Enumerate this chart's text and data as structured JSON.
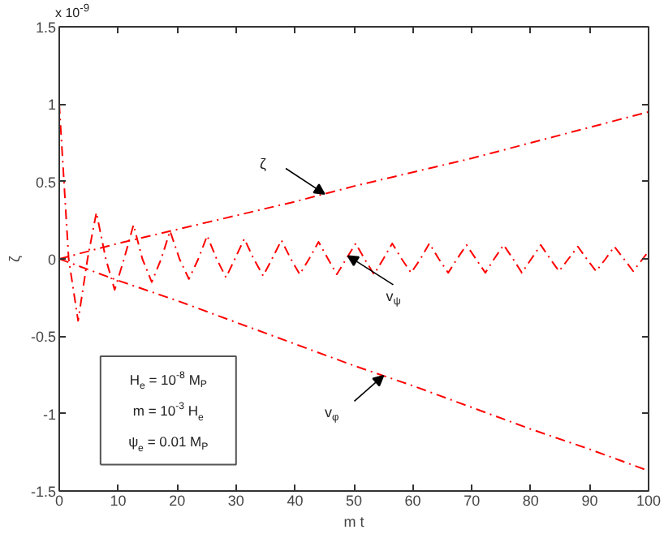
{
  "chart_data": {
    "type": "line",
    "xlabel": "m t",
    "ylabel": "ζ",
    "xlim": [
      0,
      100
    ],
    "ylim": [
      -1.5,
      1.5
    ],
    "xticks": [
      0,
      10,
      20,
      30,
      40,
      50,
      60,
      70,
      80,
      90,
      100
    ],
    "yticks": [
      -1.5,
      -1,
      -0.5,
      0,
      0.5,
      1,
      1.5
    ],
    "grid": false,
    "marker": "none",
    "line_style": "dashdot",
    "annotations": [
      "x 10$^{-9}$",
      "H$_{e}$ = 10$^{-8}$ M$_{P}$",
      "m = 10$^{-3}$ H$_{e}$",
      "ψ$_{e}$ = 0.01 M$_{P}$"
    ],
    "series": [
      {
        "name": "ζ",
        "color": "#ff0000",
        "x": [
          0,
          10,
          20,
          30,
          40,
          50,
          60,
          70,
          80,
          90,
          100
        ],
        "values": [
          0,
          0.1,
          0.19,
          0.28,
          0.37,
          0.47,
          0.56,
          0.65,
          0.75,
          0.85,
          0.95
        ]
      },
      {
        "name": "v$_{ψ}$",
        "color": "#ff0000",
        "x": [
          0,
          1.6,
          3.2,
          4.8,
          6.3,
          7.9,
          9.4,
          11,
          12.6,
          14.1,
          15.7,
          17.3,
          18.8,
          20.4,
          22,
          23.6,
          25.1,
          26.7,
          28.3,
          29.8,
          31.4,
          33,
          34.6,
          36.1,
          37.7,
          39.3,
          40.8,
          42.4,
          44,
          45.6,
          47.1,
          48.7,
          50.3,
          51.8,
          53.4,
          55,
          56.5,
          58.1,
          59.7,
          61.3,
          62.8,
          64.4,
          66,
          67.5,
          69.1,
          70.7,
          72.3,
          73.8,
          75.4,
          77,
          78.5,
          80.1,
          81.7,
          83.3,
          84.8,
          86.4,
          88,
          89.5,
          91.1,
          92.7,
          94.2,
          95.8,
          97.4,
          99,
          100
        ],
        "values": [
          1,
          0,
          -0.4,
          0,
          0.3,
          0,
          -0.2,
          0,
          0.22,
          0,
          -0.15,
          0,
          0.18,
          0,
          -0.13,
          0,
          0.15,
          0,
          -0.12,
          0,
          0.13,
          0,
          -0.11,
          0,
          0.12,
          0,
          -0.1,
          0,
          0.11,
          0,
          -0.1,
          0,
          0.1,
          0,
          -0.1,
          0,
          0.1,
          0,
          -0.09,
          0,
          0.1,
          0,
          -0.09,
          0,
          0.09,
          0,
          -0.09,
          0,
          0.09,
          0,
          -0.09,
          0,
          0.09,
          0,
          -0.08,
          0,
          0.08,
          0,
          -0.08,
          0,
          0.08,
          0,
          -0.08,
          0,
          0.05
        ]
      },
      {
        "name": "v$_{φ}$",
        "color": "#ff0000",
        "x": [
          0,
          10,
          20,
          30,
          40,
          50,
          60,
          70,
          80,
          90,
          100
        ],
        "values": [
          0,
          -0.14,
          -0.27,
          -0.41,
          -0.55,
          -0.69,
          -0.82,
          -0.96,
          -1.1,
          -1.23,
          -1.37
        ]
      }
    ]
  }
}
